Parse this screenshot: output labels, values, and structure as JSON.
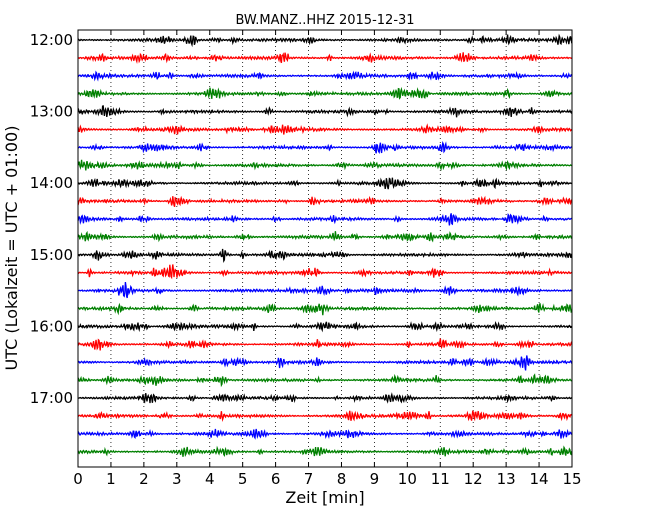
{
  "chart_data": {
    "type": "line",
    "title": "BW.MANZ..HHZ 2015-12-31",
    "xlabel": "Zeit  [min]",
    "ylabel": "UTC (Lokalzeit = UTC + 01:00)",
    "xlim": [
      0,
      15
    ],
    "x_ticks": [
      "0",
      "1",
      "2",
      "3",
      "4",
      "5",
      "6",
      "7",
      "8",
      "9",
      "10",
      "11",
      "12",
      "13",
      "14",
      "15"
    ],
    "y_tick_labels": [
      "12:00",
      "13:00",
      "14:00",
      "15:00",
      "16:00",
      "17:00"
    ],
    "grid": {
      "x": true,
      "y": false,
      "style": "dotted"
    },
    "trace_colors": [
      "#000000",
      "#ff0000",
      "#0000ff",
      "#008000"
    ],
    "traces": [
      {
        "start": "12:00"
      },
      {
        "start": "12:15"
      },
      {
        "start": "12:30"
      },
      {
        "start": "12:45"
      },
      {
        "start": "13:00"
      },
      {
        "start": "13:15"
      },
      {
        "start": "13:30"
      },
      {
        "start": "13:45"
      },
      {
        "start": "14:00"
      },
      {
        "start": "14:15"
      },
      {
        "start": "14:30"
      },
      {
        "start": "14:45"
      },
      {
        "start": "15:00"
      },
      {
        "start": "15:15"
      },
      {
        "start": "15:30"
      },
      {
        "start": "15:45"
      },
      {
        "start": "16:00"
      },
      {
        "start": "16:15"
      },
      {
        "start": "16:30"
      },
      {
        "start": "16:45"
      },
      {
        "start": "17:00"
      },
      {
        "start": "17:15"
      },
      {
        "start": "17:30"
      },
      {
        "start": "17:45"
      }
    ]
  }
}
